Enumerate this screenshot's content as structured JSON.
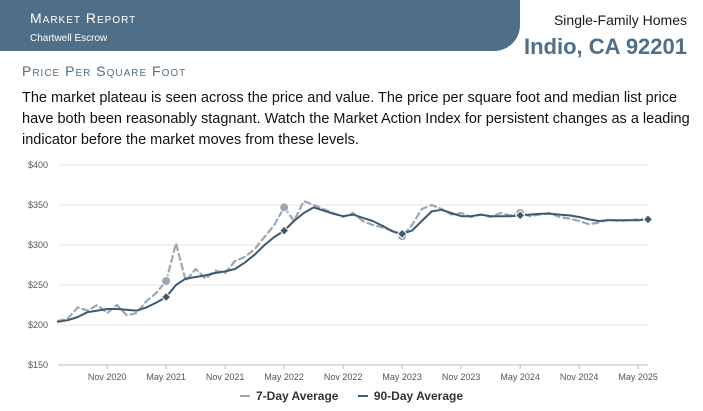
{
  "header": {
    "report_title": "Market Report",
    "company": "Chartwell Escrow",
    "property_type": "Single-Family Homes",
    "location": "Indio, CA 92201"
  },
  "section": {
    "title": "Price Per Square Foot",
    "description": "The market plateau is seen across the price and value. The price per square foot and median list price have both been reasonably stagnant. Watch the Market Action Index for persistent changes as a leading indicator before the market moves from these levels."
  },
  "colors": {
    "banner": "#4f6f88",
    "series_7day": "#9aa8b6",
    "series_90day": "#3d5a72",
    "grid": "#e6e6e6"
  },
  "chart_data": {
    "type": "line",
    "title": "",
    "xlabel": "",
    "ylabel": "",
    "ylim": [
      150,
      400
    ],
    "y_ticks": [
      150,
      200,
      250,
      300,
      350,
      400
    ],
    "y_tick_labels": [
      "$150",
      "$200",
      "$250",
      "$300",
      "$350",
      "$400"
    ],
    "x_range": [
      "2020-06",
      "2025-06"
    ],
    "x_ticks": [
      "2020-11",
      "2021-05",
      "2021-11",
      "2022-05",
      "2022-11",
      "2023-05",
      "2023-11",
      "2024-05",
      "2024-11",
      "2025-05"
    ],
    "x_tick_labels": [
      "Nov 2020",
      "May 2021",
      "Nov 2021",
      "May 2022",
      "Nov 2022",
      "May 2023",
      "Nov 2023",
      "May 2024",
      "Nov 2024",
      "May 2025"
    ],
    "grid": true,
    "legend_position": "bottom-center",
    "series": [
      {
        "name": "7-Day Average",
        "style": "dashed",
        "x": [
          "2020-06",
          "2020-07",
          "2020-08",
          "2020-09",
          "2020-10",
          "2020-11",
          "2020-12",
          "2021-01",
          "2021-02",
          "2021-03",
          "2021-04",
          "2021-05",
          "2021-06",
          "2021-07",
          "2021-08",
          "2021-09",
          "2021-10",
          "2021-11",
          "2021-12",
          "2022-01",
          "2022-02",
          "2022-03",
          "2022-04",
          "2022-05",
          "2022-06",
          "2022-07",
          "2022-08",
          "2022-09",
          "2022-10",
          "2022-11",
          "2022-12",
          "2023-01",
          "2023-02",
          "2023-03",
          "2023-04",
          "2023-05",
          "2023-06",
          "2023-07",
          "2023-08",
          "2023-09",
          "2023-10",
          "2023-11",
          "2023-12",
          "2024-01",
          "2024-02",
          "2024-03",
          "2024-04",
          "2024-05",
          "2024-06",
          "2024-07",
          "2024-08",
          "2024-09",
          "2024-10",
          "2024-11",
          "2024-12",
          "2025-01",
          "2025-02",
          "2025-03",
          "2025-04",
          "2025-05",
          "2025-06"
        ],
        "values": [
          205,
          208,
          222,
          218,
          225,
          215,
          225,
          212,
          215,
          230,
          240,
          255,
          302,
          255,
          270,
          258,
          268,
          265,
          280,
          285,
          295,
          310,
          325,
          347,
          330,
          355,
          350,
          345,
          340,
          335,
          340,
          330,
          325,
          322,
          318,
          311,
          325,
          345,
          350,
          345,
          338,
          340,
          335,
          338,
          335,
          340,
          337,
          340,
          336,
          338,
          340,
          335,
          333,
          330,
          326,
          328,
          332,
          330,
          331,
          332,
          332
        ]
      },
      {
        "name": "90-Day Average",
        "style": "solid",
        "x": [
          "2020-06",
          "2020-07",
          "2020-08",
          "2020-09",
          "2020-10",
          "2020-11",
          "2020-12",
          "2021-01",
          "2021-02",
          "2021-03",
          "2021-04",
          "2021-05",
          "2021-06",
          "2021-07",
          "2021-08",
          "2021-09",
          "2021-10",
          "2021-11",
          "2021-12",
          "2022-01",
          "2022-02",
          "2022-03",
          "2022-04",
          "2022-05",
          "2022-06",
          "2022-07",
          "2022-08",
          "2022-09",
          "2022-10",
          "2022-11",
          "2022-12",
          "2023-01",
          "2023-02",
          "2023-03",
          "2023-04",
          "2023-05",
          "2023-06",
          "2023-07",
          "2023-08",
          "2023-09",
          "2023-10",
          "2023-11",
          "2023-12",
          "2024-01",
          "2024-02",
          "2024-03",
          "2024-04",
          "2024-05",
          "2024-06",
          "2024-07",
          "2024-08",
          "2024-09",
          "2024-10",
          "2024-11",
          "2024-12",
          "2025-01",
          "2025-02",
          "2025-03",
          "2025-04",
          "2025-05",
          "2025-06"
        ],
        "values": [
          204,
          206,
          210,
          216,
          218,
          220,
          220,
          219,
          218,
          222,
          228,
          235,
          250,
          258,
          260,
          262,
          265,
          267,
          270,
          278,
          288,
          300,
          310,
          318,
          330,
          340,
          347,
          343,
          339,
          336,
          338,
          334,
          330,
          324,
          317,
          314,
          318,
          330,
          342,
          344,
          340,
          336,
          336,
          338,
          336,
          336,
          336,
          337,
          338,
          339,
          339,
          338,
          337,
          335,
          332,
          330,
          331,
          331,
          331,
          331,
          332
        ]
      }
    ],
    "markers": [
      {
        "series": "7-Day Average",
        "shape": "circle",
        "x": "2021-05",
        "y": 255
      },
      {
        "series": "7-Day Average",
        "shape": "circle",
        "x": "2022-05",
        "y": 347
      },
      {
        "series": "7-Day Average",
        "shape": "circle",
        "x": "2023-05",
        "y": 311
      },
      {
        "series": "7-Day Average",
        "shape": "circle",
        "x": "2024-05",
        "y": 340
      },
      {
        "series": "7-Day Average",
        "shape": "circle",
        "x": "2025-06",
        "y": 332
      },
      {
        "series": "90-Day Average",
        "shape": "diamond",
        "x": "2021-05",
        "y": 235
      },
      {
        "series": "90-Day Average",
        "shape": "diamond",
        "x": "2022-05",
        "y": 318
      },
      {
        "series": "90-Day Average",
        "shape": "diamond",
        "x": "2023-05",
        "y": 314
      },
      {
        "series": "90-Day Average",
        "shape": "diamond",
        "x": "2024-05",
        "y": 337
      },
      {
        "series": "90-Day Average",
        "shape": "diamond",
        "x": "2025-06",
        "y": 332
      }
    ]
  }
}
